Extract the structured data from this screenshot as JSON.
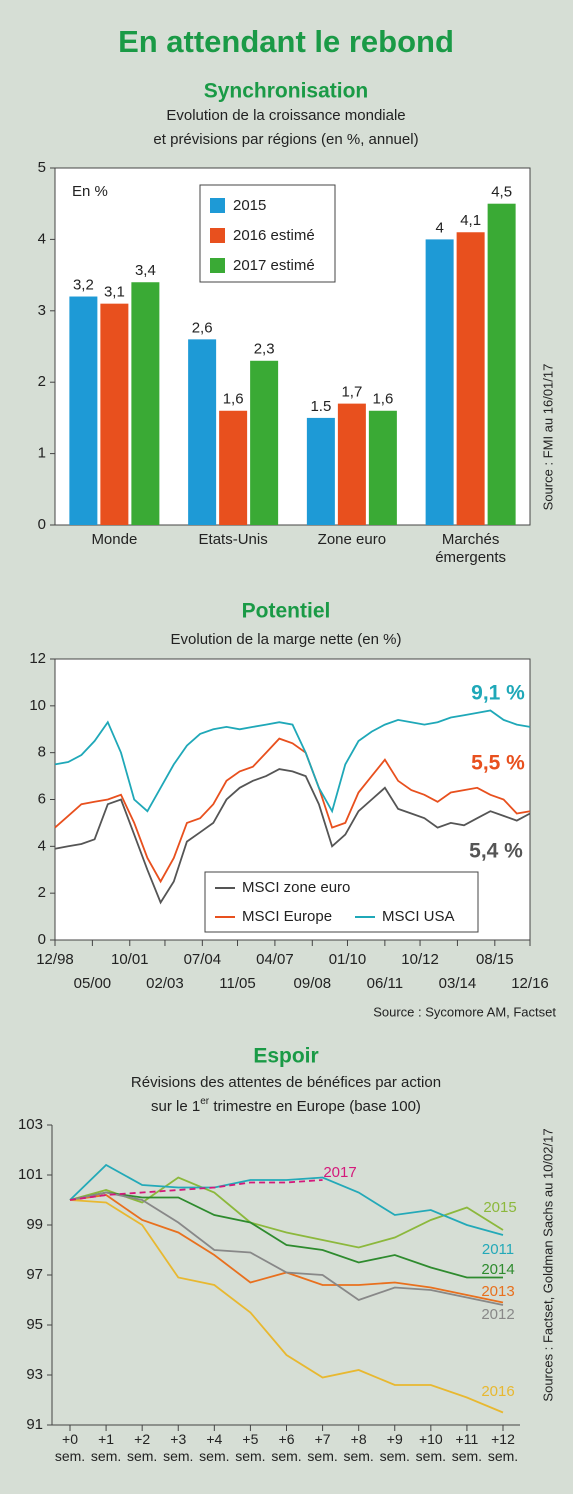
{
  "title": "En attendant le rebond",
  "chart_data": [
    {
      "type": "bar",
      "title": "Synchronisation",
      "subtitle": [
        [
          "Evolution de la croissance mondiale"
        ],
        [
          "et prévisions par régions (en %, annuel)"
        ]
      ],
      "annotation": "En %",
      "source": "Source : FMI au 16/01/17",
      "categories": [
        "Monde",
        "Etats-Unis",
        "Zone euro",
        "Marchés émergents"
      ],
      "series": [
        {
          "name": "2015",
          "color": "#1e9ad6",
          "values": [
            3.2,
            2.6,
            1.5,
            4
          ],
          "value_labels": [
            "3,2",
            "2,6",
            "1.5",
            "4"
          ]
        },
        {
          "name": "2016 estimé",
          "color": "#e8501e",
          "values": [
            3.1,
            1.6,
            1.7,
            4.1
          ],
          "value_labels": [
            "3,1",
            "1,6",
            "1,7",
            "4,1"
          ]
        },
        {
          "name": "2017 estimé",
          "color": "#3aaa35",
          "values": [
            3.4,
            2.3,
            1.6,
            4.5
          ],
          "value_labels": [
            "3,4",
            "2,3",
            "1,6",
            "4,5"
          ]
        }
      ],
      "ylim": [
        0,
        5
      ],
      "yticks": [
        0,
        1,
        2,
        3,
        4,
        5
      ],
      "grid": false,
      "legend": "top"
    },
    {
      "type": "line",
      "title": "Potentiel",
      "subtitle": [
        [
          "Evolution de la marge nette (en %)"
        ]
      ],
      "source": "Source : Sycomore AM, Factset",
      "x": [
        "12/98",
        "06/99",
        "12/99",
        "06/00",
        "12/00",
        "06/01",
        "12/01",
        "06/02",
        "12/02",
        "06/03",
        "12/03",
        "06/04",
        "12/04",
        "06/05",
        "12/05",
        "06/06",
        "12/06",
        "06/07",
        "12/07",
        "06/08",
        "12/08",
        "06/09",
        "12/09",
        "06/10",
        "12/10",
        "06/11",
        "12/11",
        "06/12",
        "12/12",
        "06/13",
        "12/13",
        "06/14",
        "12/14",
        "06/15",
        "12/15",
        "06/16",
        "12/16"
      ],
      "series": [
        {
          "name": "MSCI zone euro",
          "color": "#555555",
          "values": [
            3.9,
            4.0,
            4.1,
            4.3,
            5.8,
            6.0,
            4.5,
            3.0,
            1.6,
            2.5,
            4.2,
            4.6,
            5.0,
            6.0,
            6.5,
            6.8,
            7.0,
            7.3,
            7.2,
            7.0,
            5.8,
            4.0,
            4.5,
            5.5,
            6.0,
            6.5,
            5.6,
            5.4,
            5.2,
            4.8,
            5.0,
            4.9,
            5.2,
            5.5,
            5.3,
            5.1,
            5.4
          ]
        },
        {
          "name": "MSCI Europe",
          "color": "#e8501e",
          "values": [
            4.8,
            5.3,
            5.8,
            5.9,
            6.0,
            6.2,
            5.0,
            3.5,
            2.5,
            3.5,
            5.0,
            5.2,
            5.8,
            6.8,
            7.2,
            7.4,
            8.0,
            8.6,
            8.4,
            8.0,
            6.5,
            4.8,
            5.0,
            6.3,
            7.0,
            7.7,
            6.8,
            6.4,
            6.2,
            5.9,
            6.3,
            6.4,
            6.5,
            6.2,
            6.0,
            5.4,
            5.5
          ]
        },
        {
          "name": "MSCI USA",
          "color": "#1fa8b8",
          "values": [
            7.5,
            7.6,
            7.9,
            8.5,
            9.3,
            8.0,
            6.0,
            5.5,
            6.5,
            7.5,
            8.3,
            8.8,
            9.0,
            9.1,
            9.0,
            9.1,
            9.2,
            9.3,
            9.2,
            8.0,
            6.5,
            5.5,
            7.5,
            8.5,
            8.9,
            9.2,
            9.4,
            9.3,
            9.2,
            9.3,
            9.5,
            9.6,
            9.7,
            9.8,
            9.4,
            9.2,
            9.1
          ]
        }
      ],
      "annotations": [
        {
          "text": "9,1 %",
          "color": "#1fa8b8"
        },
        {
          "text": "5,5 %",
          "color": "#e8501e"
        },
        {
          "text": "5,4 %",
          "color": "#555555"
        }
      ],
      "xlim": [
        "12/98",
        "12/16"
      ],
      "xticks": [
        "12/98",
        "05/00",
        "10/01",
        "02/03",
        "07/04",
        "11/05",
        "04/07",
        "09/08",
        "01/10",
        "06/11",
        "10/12",
        "03/14",
        "08/15",
        "12/16"
      ],
      "ylim": [
        0,
        12
      ],
      "yticks": [
        0,
        2,
        4,
        6,
        8,
        10,
        12
      ],
      "grid": false,
      "legend": "bottom"
    },
    {
      "type": "line",
      "title": "Espoir",
      "subtitle": [
        [
          "Révisions des attentes de bénéfices par action"
        ],
        [
          "sur le 1",
          "er",
          " trimestre en Europe (base 100)"
        ]
      ],
      "source": "Sources : Factset, Goldman Sachs au 10/02/17",
      "categories": [
        "+0 sem.",
        "+1 sem.",
        "+2 sem.",
        "+3 sem.",
        "+4 sem.",
        "+5 sem.",
        "+6 sem.",
        "+7 sem.",
        "+8 sem.",
        "+9 sem.",
        "+10 sem.",
        "+11 sem.",
        "+12 sem."
      ],
      "series": [
        {
          "name": "2015",
          "color": "#8cb83c",
          "values": [
            100,
            100.4,
            99.9,
            100.9,
            100.3,
            99.1,
            98.7,
            98.4,
            98.1,
            98.5,
            99.2,
            99.7,
            98.8
          ]
        },
        {
          "name": "2011",
          "color": "#23a9b8",
          "values": [
            100,
            101.4,
            100.6,
            100.5,
            100.5,
            100.8,
            100.8,
            100.9,
            100.3,
            99.4,
            99.6,
            99.0,
            98.6
          ]
        },
        {
          "name": "2014",
          "color": "#2e8b2e",
          "values": [
            100,
            100.3,
            100.1,
            100.1,
            99.4,
            99.1,
            98.2,
            98.0,
            97.5,
            97.8,
            97.3,
            96.9,
            96.9
          ]
        },
        {
          "name": "2013",
          "color": "#e8701e",
          "values": [
            100,
            100.2,
            99.2,
            98.7,
            97.8,
            96.7,
            97.1,
            96.6,
            96.6,
            96.7,
            96.5,
            96.2,
            95.9
          ]
        },
        {
          "name": "2012",
          "color": "#888888",
          "values": [
            100,
            100.3,
            100.0,
            99.1,
            98.0,
            97.9,
            97.1,
            97.0,
            96.0,
            96.5,
            96.4,
            96.1,
            95.8
          ]
        },
        {
          "name": "2016",
          "color": "#e8b830",
          "values": [
            100,
            99.9,
            99.0,
            96.9,
            96.6,
            95.5,
            93.8,
            92.9,
            93.2,
            92.6,
            92.6,
            92.1,
            91.5
          ]
        },
        {
          "name": "2017",
          "color": "#d4197b",
          "dashed": true,
          "values": [
            100,
            100.2,
            100.3,
            100.4,
            100.5,
            100.7,
            100.7,
            100.8,
            null,
            null,
            null,
            null,
            null
          ]
        }
      ],
      "ylim": [
        91,
        103
      ],
      "yticks": [
        91,
        93,
        95,
        97,
        99,
        101,
        103
      ],
      "grid": false
    }
  ]
}
